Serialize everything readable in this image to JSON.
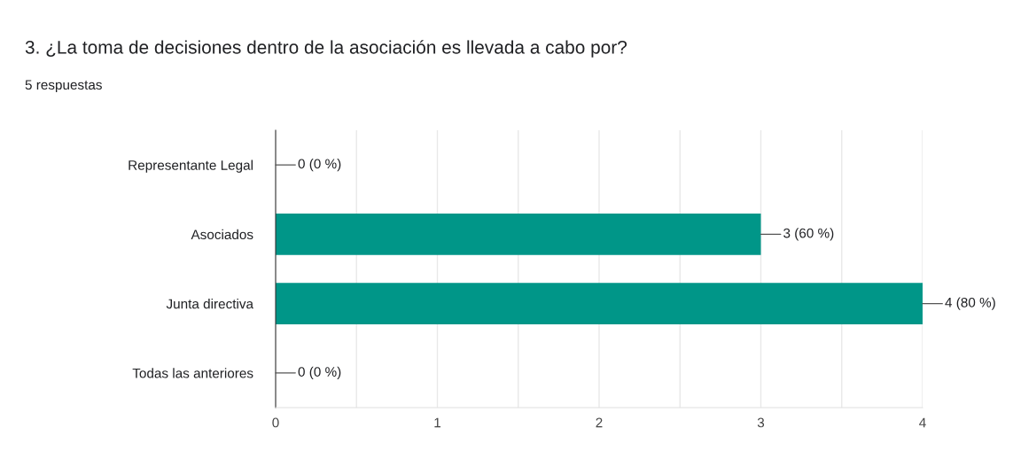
{
  "chart_data": {
    "type": "bar",
    "orientation": "horizontal",
    "title": "3. ¿La toma de decisiones dentro de la asociación es llevada a cabo por?",
    "subtitle": "5 respuestas",
    "categories": [
      "Representante Legal",
      "Asociados",
      "Junta directiva",
      "Todas las anteriores"
    ],
    "values": [
      0,
      3,
      4,
      0
    ],
    "color": "#009688",
    "value_labels": [
      "0 (0 %)",
      "3 (60 %)",
      "4 (80 %)",
      "0 (0 %)"
    ],
    "xlim": [
      0,
      4
    ],
    "xticks": [
      0,
      {
        "value": 0.5,
        "label": null
      },
      1,
      {
        "value": 1.5,
        "label": null
      },
      2,
      {
        "value": 2.5,
        "label": null
      },
      3,
      {
        "value": 3.5,
        "label": null
      },
      4
    ],
    "grid": "x",
    "legend": false
  }
}
